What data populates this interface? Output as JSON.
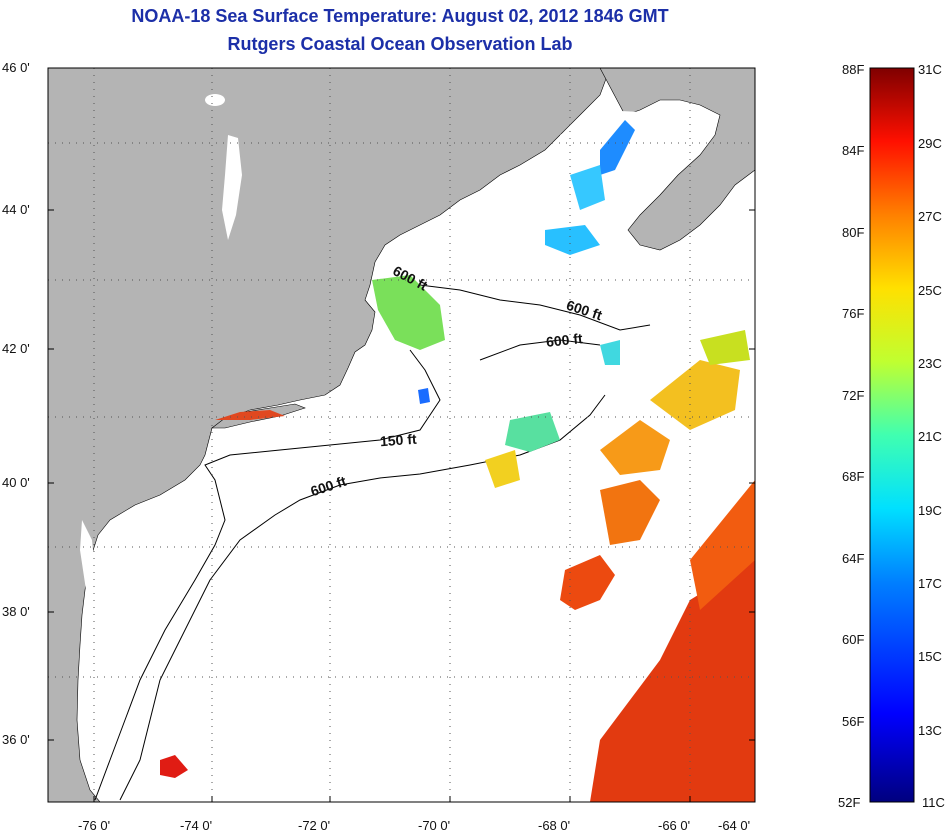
{
  "title_line1": "NOAA-18 Sea Surface Temperature:  August 02, 2012 1846 GMT",
  "title_line2": "Rutgers Coastal Ocean Observation Lab",
  "map": {
    "lat_ticks": [
      "46 0'",
      "44 0'",
      "42 0'",
      "40 0'",
      "38 0'",
      "36 0'"
    ],
    "lon_ticks": [
      "-76 0'",
      "-74 0'",
      "-72 0'",
      "-70 0'",
      "-68 0'",
      "-66 0'",
      "-64 0'"
    ],
    "contour_labels": [
      "600 ft",
      "600 ft",
      "600 ft",
      "150 ft",
      "600 ft"
    ],
    "colors": {
      "land": "#b4b4b4",
      "water": "#ffffff",
      "grid": "#555555"
    }
  },
  "colorbar": {
    "f_labels": [
      "88F",
      "84F",
      "80F",
      "76F",
      "72F",
      "68F",
      "64F",
      "60F",
      "56F",
      "52F"
    ],
    "c_labels": [
      "31C",
      "29C",
      "27C",
      "25C",
      "23C",
      "21C",
      "19C",
      "17C",
      "15C",
      "13C",
      "11C"
    ],
    "range_c": [
      11,
      31
    ]
  }
}
